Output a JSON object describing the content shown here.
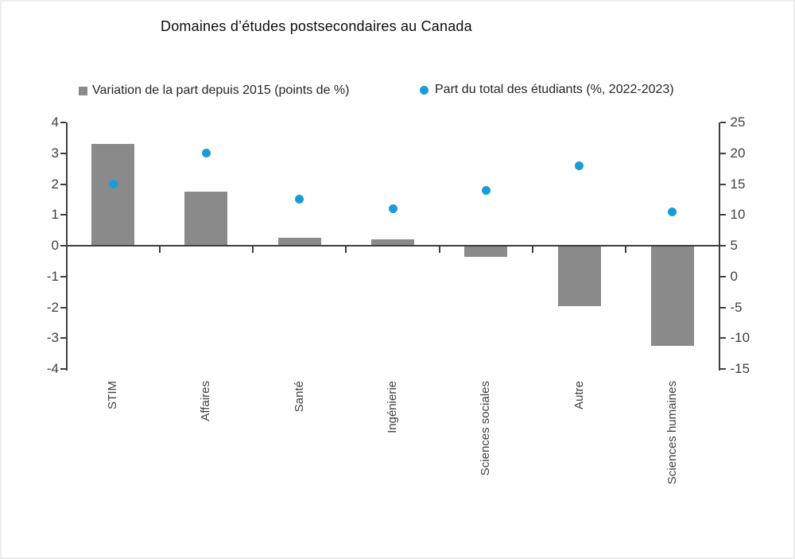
{
  "title": "Domaines d’études postsecondaires au Canada",
  "colors": {
    "bar": "#8a8a8a",
    "dot": "#189cd9",
    "axis": "#3f3f3f",
    "text": "#404040",
    "page_border": "#ededed"
  },
  "legend": [
    {
      "label": "Variation de la part depuis 2015 (points de %)",
      "marker": "square",
      "color": "#8a8a8a"
    },
    {
      "label": "Part du total des étudiants (%, 2022-2023)",
      "marker": "circle",
      "color": "#189cd9"
    }
  ],
  "chart_data": {
    "type": "bar",
    "subtype": "combo-bar-and-scatter",
    "title": "Domaines d’études postsecondaires au Canada",
    "categories": [
      "STIM",
      "Affaires",
      "Santé",
      "Ingénierie",
      "Sciences sociales",
      "Autre",
      "Sciences humaines"
    ],
    "series": [
      {
        "name": "Variation de la part depuis 2015 (points de %)",
        "type": "bar",
        "axis": "left",
        "color": "#8a8a8a",
        "values": [
          3.3,
          1.75,
          0.25,
          0.2,
          -0.35,
          -1.95,
          -3.25
        ]
      },
      {
        "name": "Part du total des étudiants (%, 2022-2023)",
        "type": "scatter",
        "axis": "right",
        "color": "#189cd9",
        "values": [
          15,
          20,
          12.5,
          11,
          14,
          18,
          10.5
        ]
      }
    ],
    "left_axis": {
      "min": -4,
      "max": 4,
      "step": 1,
      "ticks": [
        4,
        3,
        2,
        1,
        0,
        -1,
        -2,
        -3,
        -4
      ]
    },
    "right_axis": {
      "min": -15,
      "max": 25,
      "step": 5,
      "ticks": [
        25,
        20,
        15,
        10,
        5,
        0,
        -5,
        -10,
        -15
      ]
    },
    "grid": false,
    "legend_position": "top",
    "xlabel": "",
    "ylabel_left": "",
    "ylabel_right": ""
  }
}
